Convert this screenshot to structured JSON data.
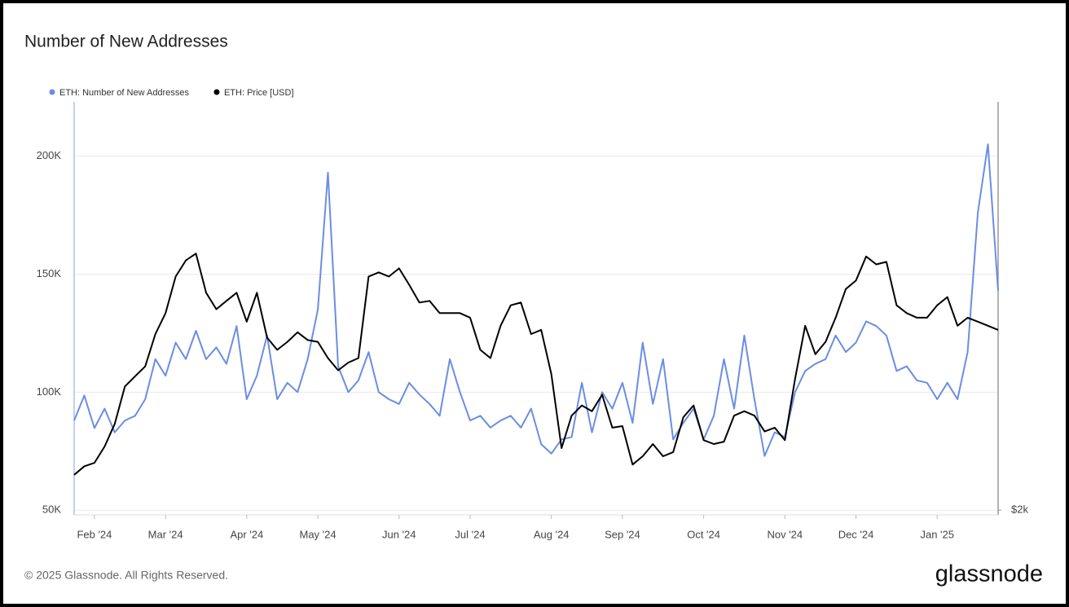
{
  "chart_data": {
    "type": "line",
    "title": "Number of New Addresses",
    "categories": [
      null,
      null,
      "Feb '24",
      null,
      null,
      null,
      null,
      null,
      null,
      "Mar '24",
      null,
      null,
      null,
      null,
      null,
      null,
      null,
      "Apr '24",
      null,
      null,
      null,
      null,
      null,
      null,
      "May '24",
      null,
      null,
      null,
      null,
      null,
      null,
      null,
      "Jun '24",
      null,
      null,
      null,
      null,
      null,
      null,
      "Jul '24",
      null,
      null,
      null,
      null,
      null,
      null,
      null,
      "Aug '24",
      null,
      null,
      null,
      null,
      null,
      null,
      "Sep '24",
      null,
      null,
      null,
      null,
      null,
      null,
      null,
      "Oct '24",
      null,
      null,
      null,
      null,
      null,
      null,
      null,
      "Nov '24",
      null,
      null,
      null,
      null,
      null,
      null,
      "Dec '24",
      null,
      null,
      null,
      null,
      null,
      null,
      null,
      "Jan '25",
      null,
      null,
      null,
      null,
      null,
      null
    ],
    "series": [
      {
        "name": "ETH: Number of New Addresses",
        "color": "#6b8de3",
        "values": [
          88000,
          98600,
          84800,
          93000,
          83000,
          88000,
          90000,
          97000,
          114000,
          107000,
          121000,
          114000,
          126000,
          114000,
          119000,
          112000,
          128000,
          97000,
          107000,
          124000,
          97000,
          104000,
          100000,
          114000,
          135000,
          193000,
          111000,
          100000,
          105000,
          117000,
          100000,
          97000,
          95000,
          104000,
          99000,
          95000,
          90000,
          114000,
          100000,
          88000,
          90000,
          85000,
          88000,
          90000,
          85000,
          93000,
          78000,
          74000,
          80000,
          81000,
          104000,
          83000,
          100000,
          93000,
          104000,
          87000,
          121000,
          95000,
          114000,
          80000,
          87000,
          93000,
          80000,
          90000,
          114000,
          93000,
          124000,
          97000,
          73000,
          83000,
          81000,
          100000,
          109000,
          112000,
          114000,
          124000,
          117000,
          121000,
          130000,
          128000,
          124000,
          109000,
          111000,
          105000,
          104000,
          97000,
          104000,
          97000,
          117000,
          176000,
          205000,
          143000
        ]
      },
      {
        "name": "ETH: Price [USD]",
        "color": "#000000",
        "axis": "y2",
        "values": [
          2195,
          2245,
          2265,
          2365,
          2510,
          2770,
          2845,
          2920,
          3180,
          3360,
          3700,
          3860,
          3930,
          3545,
          3395,
          3470,
          3545,
          3285,
          3545,
          3150,
          3050,
          3115,
          3195,
          3130,
          3115,
          2985,
          2890,
          2950,
          2985,
          3700,
          3740,
          3700,
          3780,
          3620,
          3455,
          3470,
          3360,
          3360,
          3360,
          3320,
          3050,
          2985,
          3250,
          3430,
          3455,
          3180,
          3215,
          2860,
          2355,
          2565,
          2635,
          2595,
          2710,
          2485,
          2495,
          2255,
          2305,
          2380,
          2305,
          2330,
          2555,
          2635,
          2405,
          2380,
          2395,
          2565,
          2595,
          2565,
          2460,
          2485,
          2405,
          2825,
          3250,
          3015,
          3115,
          3320,
          3580,
          3660,
          3900,
          3820,
          3845,
          3430,
          3360,
          3320,
          3320,
          3430,
          3505,
          3250,
          3320,
          3285,
          3250,
          3215
        ]
      }
    ],
    "ylim": [
      48000,
      223000
    ],
    "yticks": [
      {
        "value": 50000,
        "label": "50K"
      },
      {
        "value": 100000,
        "label": "100K"
      },
      {
        "value": 150000,
        "label": "150K"
      },
      {
        "value": 200000,
        "label": "200K"
      }
    ],
    "y2lim": [
      1975,
      5860
    ],
    "y2ticks": [
      {
        "value": 2000,
        "label": "$2k"
      }
    ],
    "log_scale_y2": true,
    "grid": true,
    "legend": "top-left"
  },
  "footer": {
    "copyright": "© 2025 Glassnode. All Rights Reserved.",
    "logo": "glassnode"
  }
}
